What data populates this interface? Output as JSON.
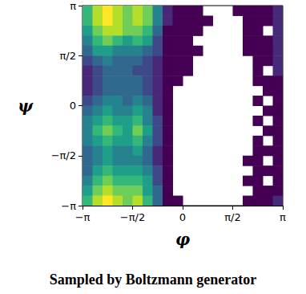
{
  "chart_data": {
    "type": "heatmap",
    "title": "Sampled by Boltzmann generator",
    "x_label": "φ",
    "y_label": "ψ",
    "x": [
      -2.985,
      -2.67,
      -2.356,
      -2.042,
      -1.728,
      -1.414,
      -1.1,
      -0.785,
      -0.471,
      -0.157,
      0.157,
      0.471,
      0.785,
      1.1,
      1.414,
      1.728,
      2.042,
      2.356,
      2.67,
      2.985
    ],
    "y": [
      2.985,
      2.67,
      2.356,
      2.042,
      1.728,
      1.414,
      1.1,
      0.785,
      0.471,
      0.157,
      -0.157,
      -0.471,
      -0.785,
      -1.1,
      -1.414,
      -1.728,
      -2.042,
      -2.356,
      -2.67,
      -2.985
    ],
    "values": [
      [
        7,
        9,
        10,
        9,
        8,
        9,
        8,
        5,
        2,
        1,
        1,
        1,
        0,
        0,
        0,
        1,
        1,
        1,
        1,
        2
      ],
      [
        7,
        9,
        10,
        9,
        8,
        9,
        8,
        5,
        2,
        1,
        1,
        1,
        1,
        0,
        0,
        0,
        1,
        1,
        1,
        2
      ],
      [
        6,
        8,
        9,
        9,
        8,
        8,
        7,
        4,
        1,
        1,
        1,
        1,
        0,
        0,
        0,
        0,
        1,
        1,
        0,
        2
      ],
      [
        5,
        7,
        8,
        7,
        6,
        7,
        6,
        3,
        1,
        1,
        1,
        0,
        0,
        0,
        0,
        0,
        1,
        1,
        1,
        2
      ],
      [
        4,
        6,
        6,
        5,
        5,
        5,
        4,
        3,
        1,
        1,
        1,
        1,
        0,
        0,
        0,
        0,
        1,
        1,
        1,
        2
      ],
      [
        3,
        4,
        5,
        4,
        4,
        4,
        3,
        2,
        1,
        1,
        1,
        0,
        0,
        0,
        0,
        0,
        0,
        1,
        1,
        2
      ],
      [
        2,
        3,
        4,
        4,
        4,
        3,
        3,
        2,
        1,
        1,
        1,
        0,
        0,
        0,
        0,
        0,
        0,
        1,
        0,
        2
      ],
      [
        2,
        3,
        4,
        4,
        4,
        4,
        3,
        2,
        1,
        1,
        0,
        0,
        0,
        0,
        0,
        0,
        0,
        1,
        1,
        1
      ],
      [
        2,
        3,
        4,
        4,
        4,
        4,
        3,
        2,
        1,
        0,
        0,
        0,
        0,
        0,
        0,
        0,
        0,
        0,
        1,
        1
      ],
      [
        3,
        4,
        5,
        5,
        4,
        5,
        4,
        2,
        1,
        0,
        0,
        0,
        0,
        0,
        0,
        0,
        0,
        1,
        0,
        1
      ],
      [
        4,
        5,
        6,
        5,
        5,
        6,
        5,
        2,
        1,
        0,
        0,
        0,
        0,
        0,
        0,
        0,
        0,
        0,
        1,
        1
      ],
      [
        5,
        6,
        7,
        6,
        6,
        7,
        5,
        3,
        1,
        0,
        0,
        0,
        0,
        0,
        0,
        0,
        0,
        1,
        0,
        1
      ],
      [
        5,
        7,
        8,
        7,
        6,
        8,
        6,
        3,
        1,
        0,
        0,
        0,
        0,
        0,
        0,
        0,
        0,
        0,
        1,
        1
      ],
      [
        5,
        6,
        7,
        6,
        6,
        7,
        5,
        3,
        1,
        0,
        0,
        0,
        0,
        0,
        0,
        0,
        0,
        1,
        0,
        1
      ],
      [
        4,
        5,
        6,
        5,
        5,
        6,
        4,
        2,
        1,
        0,
        0,
        0,
        0,
        0,
        0,
        0,
        0,
        1,
        1,
        1
      ],
      [
        4,
        5,
        6,
        5,
        5,
        5,
        4,
        2,
        1,
        0,
        0,
        0,
        0,
        0,
        0,
        0,
        1,
        1,
        0,
        1
      ],
      [
        4,
        6,
        7,
        6,
        6,
        6,
        5,
        3,
        1,
        0,
        0,
        0,
        0,
        0,
        0,
        0,
        0,
        1,
        1,
        1
      ],
      [
        5,
        7,
        8,
        7,
        7,
        7,
        6,
        3,
        1,
        0,
        0,
        0,
        0,
        0,
        0,
        0,
        1,
        1,
        0,
        1
      ],
      [
        6,
        8,
        9,
        8,
        8,
        8,
        6,
        4,
        1,
        0,
        0,
        0,
        0,
        0,
        0,
        0,
        0,
        1,
        1,
        1
      ],
      [
        7,
        9,
        10,
        9,
        8,
        9,
        7,
        4,
        1,
        1,
        0,
        0,
        0,
        0,
        0,
        0,
        1,
        1,
        1,
        2
      ]
    ],
    "xlim": [
      -3.1416,
      3.1416
    ],
    "ylim": [
      -3.1416,
      3.1416
    ],
    "xticks": [
      {
        "value": -3.1416,
        "label": "−π"
      },
      {
        "value": -1.5708,
        "label": "−π/2"
      },
      0,
      {
        "value": 1.5708,
        "label": "π/2"
      },
      {
        "value": 3.1416,
        "label": "π"
      }
    ],
    "yticks": [
      {
        "value": -3.1416,
        "label": "−π"
      },
      {
        "value": -1.5708,
        "label": "−π/2"
      },
      0,
      {
        "value": 1.5708,
        "label": "π/2"
      },
      {
        "value": 3.1416,
        "label": "π"
      }
    ]
  }
}
